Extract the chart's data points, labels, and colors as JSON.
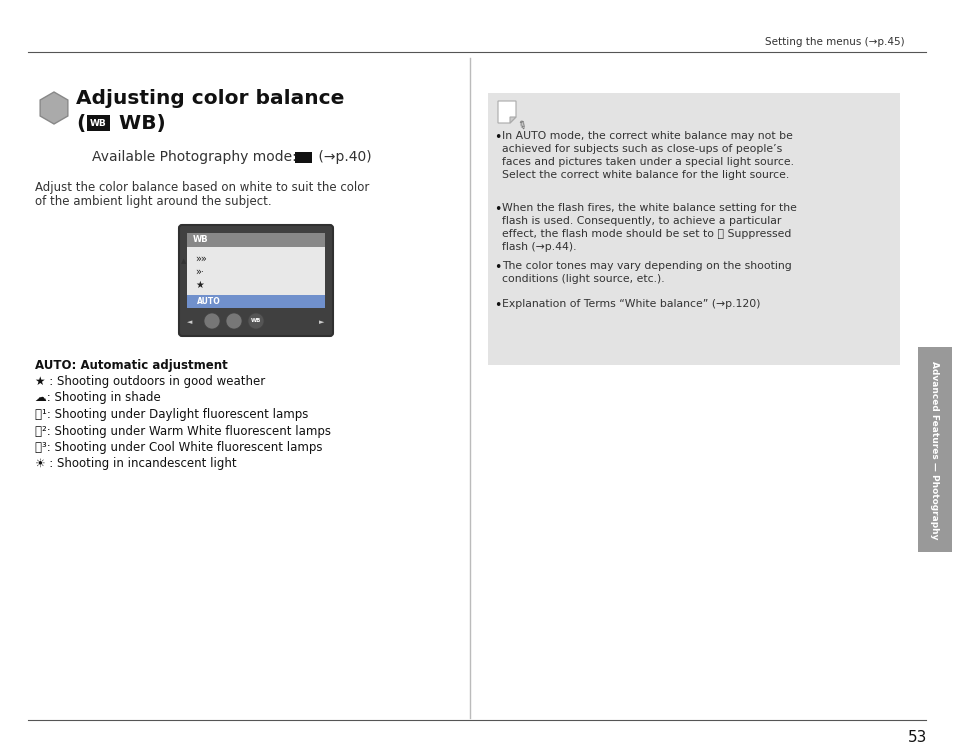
{
  "bg_color": "#ffffff",
  "header_text": "Setting the menus (→p.45)",
  "title_line1": "Adjusting color balance",
  "title_wb": "WB",
  "title_line2_post": " WB)",
  "avail_text_pre": "Available Photography mode: ",
  "avail_text_post": " (→p.40)",
  "body_line1": "Adjust the color balance based on white to suit the color",
  "body_line2": "of the ambient light around the subject.",
  "list_items_text": [
    [
      "AUTO: Automatic adjustment"
    ],
    [
      "★ : Shooting outdoors in good weather"
    ],
    [
      "☁: Shooting in shade"
    ],
    [
      "祸¹: Shooting under Daylight fluorescent lamps"
    ],
    [
      "祸²: Shooting under Warm White fluorescent lamps"
    ],
    [
      "祸³: Shooting under Cool White fluorescent lamps"
    ],
    [
      "☀ : Shooting in incandescent light"
    ]
  ],
  "note_bullets": [
    [
      "In AUTO mode, the correct white balance may not be",
      "achieved for subjects such as close-ups of people’s",
      "faces and pictures taken under a special light source.",
      "Select the correct white balance for the light source."
    ],
    [
      "When the flash fires, the white balance setting for the",
      "flash is used. Consequently, to achieve a particular",
      "effect, the flash mode should be set to Ⓢ Suppressed",
      "flash (→p.44)."
    ],
    [
      "The color tones may vary depending on the shooting",
      "conditions (light source, etc.)."
    ],
    [
      "Explanation of Terms “White balance” (→p.120)"
    ]
  ],
  "sidebar_text": "Advanced Features — Photography",
  "page_number": "53",
  "note_bg": "#e3e3e3",
  "sidebar_bg": "#999999",
  "hex_color": "#aaaaaa",
  "hex_edge": "#888888",
  "text_dark": "#111111",
  "text_mid": "#333333",
  "line_color": "#555555"
}
